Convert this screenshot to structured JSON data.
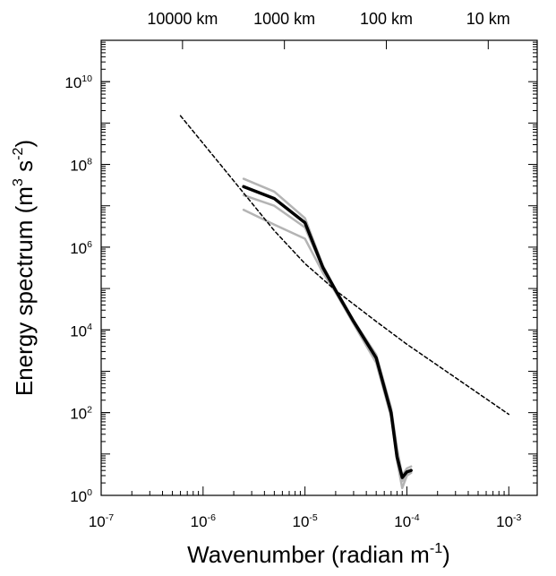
{
  "chart_data": {
    "type": "line",
    "x_label": "Wavenumber (radian m^{-1})",
    "y_label": "Energy spectrum (m^{3} s^{-2})",
    "xscale": "log",
    "yscale": "log",
    "xlim": [
      1e-07,
      0.0019
    ],
    "ylim": [
      1,
      100000000000.0
    ],
    "xticks": [
      {
        "value": 1e-07,
        "label": "10^{-7}"
      },
      {
        "value": 1e-06,
        "label": "10^{-6}"
      },
      {
        "value": 1e-05,
        "label": "10^{-5}"
      },
      {
        "value": 0.0001,
        "label": "10^{-4}"
      },
      {
        "value": 0.001,
        "label": "10^{-3}"
      }
    ],
    "yticks": [
      {
        "value": 1,
        "label": "10^{0}"
      },
      {
        "value": 100,
        "label": "10^{2}"
      },
      {
        "value": 10000,
        "label": "10^{4}"
      },
      {
        "value": 1000000,
        "label": "10^{6}"
      },
      {
        "value": 100000000,
        "label": "10^{8}"
      },
      {
        "value": 10000000000,
        "label": "10^{10}"
      }
    ],
    "x2lim": [
      62832,
      3.307
    ],
    "x2ticks": [
      {
        "value": 10000,
        "label": "10000 km"
      },
      {
        "value": 1000,
        "label": "1000 km"
      },
      {
        "value": 100,
        "label": "100 km"
      },
      {
        "value": 10,
        "label": "10 km"
      }
    ],
    "minor_ticks": true,
    "series": [
      {
        "color": "#b4b4b4",
        "width": 2.5,
        "x": [
          2.5e-06,
          5e-06,
          1e-05,
          1.5e-05,
          2e-05,
          3e-05,
          5e-05,
          7e-05,
          8e-05,
          9e-05,
          0.0001,
          0.00011
        ],
        "values": [
          45000000.0,
          22000000.0,
          5000000.0,
          360000.0,
          95000.0,
          17000.0,
          2500.0,
          130,
          14,
          3,
          4.5,
          5
        ]
      },
      {
        "color": "#b4b4b4",
        "width": 2.5,
        "x": [
          2.5e-06,
          5e-06,
          1e-05,
          1.5e-05,
          2e-05,
          3e-05,
          5e-05,
          7e-05,
          8e-05,
          9e-05,
          0.0001,
          0.00011
        ],
        "values": [
          8000000.0,
          3500000.0,
          1600000.0,
          240000.0,
          80000.0,
          14000.0,
          1600.0,
          80,
          7,
          1.5,
          3,
          3.5
        ]
      },
      {
        "color": "#b4b4b4",
        "width": 2.5,
        "x": [
          2.5e-06,
          5e-06,
          1e-05,
          1.5e-05,
          2e-05,
          3e-05,
          5e-05,
          7e-05,
          8e-05,
          9e-05,
          0.0001,
          0.00011
        ],
        "values": [
          18000000.0,
          10000000.0,
          3000000.0,
          300000.0,
          85000.0,
          15000.0,
          1900.0,
          110,
          10,
          2.2,
          3.3,
          4.2
        ]
      },
      {
        "color": "#000000",
        "width": 3.5,
        "x": [
          2.5e-06,
          5e-06,
          1e-05,
          1.5e-05,
          2e-05,
          3e-05,
          5e-05,
          7e-05,
          8e-05,
          9e-05,
          0.0001,
          0.00011
        ],
        "values": [
          29000000.0,
          15000000.0,
          3900000.0,
          320000.0,
          90000.0,
          16000.0,
          2100.0,
          100,
          8.6,
          2.7,
          3.7,
          4
        ]
      },
      {
        "color": "#000000",
        "width": 1.5,
        "dash": true,
        "x": [
          6e-07,
          2e-06,
          5e-06,
          1e-05,
          2e-05,
          5e-05,
          0.0001,
          0.001
        ],
        "values": [
          1500000000.0,
          40000000.0,
          2500000.0,
          400000.0,
          90000.0,
          16000.0,
          4500.0,
          91
        ]
      }
    ]
  }
}
